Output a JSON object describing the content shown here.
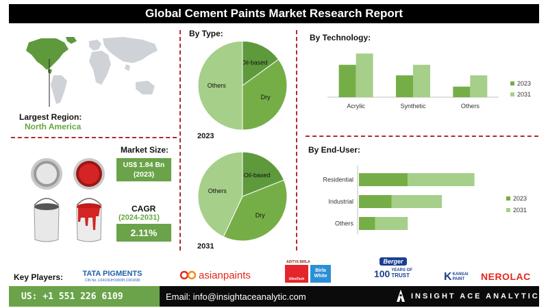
{
  "title": "Global Cement Paints Market Research Report",
  "region": {
    "label": "Largest Region:",
    "value": "North America"
  },
  "market_size": {
    "label": "Market Size:",
    "value": "US$ 1.84  Bn",
    "year": "(2023)"
  },
  "cagr": {
    "label": "CAGR",
    "period": "(2024-2031)",
    "value": "2.11%"
  },
  "sections": {
    "by_type": "By Type:",
    "by_technology": "By  Technology:",
    "by_end_user": "By End-User:"
  },
  "colors": {
    "dark_green": "#5e9a3c",
    "mid_green": "#75ae47",
    "light_green": "#a6cf8a",
    "accent_red": "#b02a2a"
  },
  "key_players": {
    "label": "Key Players:",
    "tata": {
      "name": "TATA PIGMENTS",
      "sub": "CIN No. U24100JH1983PLC001838"
    },
    "asian": "asianpaints",
    "birla": {
      "top": "ADITYA BIRLA",
      "left": "UltraTech",
      "right": "Birla White"
    },
    "berger": {
      "brand": "Berger",
      "years": "100",
      "years_label": "YEARS OF",
      "trust": "TRUST"
    },
    "kansai": {
      "mark": "K",
      "name": "KANSAI",
      "sub": "PAINT"
    },
    "nerolac": "NEROLAC"
  },
  "footer": {
    "phone": "US: +1 551 226 6109",
    "email": "Email: info@insightaceanalytic.com",
    "brand": "INSIGHT ACE ANALYTIC"
  },
  "chart_data": [
    {
      "type": "pie",
      "year": "2023",
      "slices": [
        {
          "label": "Oil-based",
          "value": 15
        },
        {
          "label": "Dry",
          "value": 35
        },
        {
          "label": "Others",
          "value": 50
        }
      ]
    },
    {
      "type": "pie",
      "year": "2031",
      "slices": [
        {
          "label": "Oil-based",
          "value": 19
        },
        {
          "label": "Dry",
          "value": 38
        },
        {
          "label": "Others",
          "value": 43
        }
      ]
    },
    {
      "type": "bar",
      "orientation": "vertical",
      "categories": [
        "Acrylic",
        "Synthetic",
        "Others"
      ],
      "series": [
        {
          "name": "2023",
          "values": [
            46,
            31,
            15
          ]
        },
        {
          "name": "2031",
          "values": [
            62,
            46,
            31
          ]
        }
      ],
      "ylim": [
        0,
        70
      ],
      "grid": false,
      "legend": "right"
    },
    {
      "type": "bar",
      "orientation": "horizontal-stacked",
      "categories": [
        "Residential",
        "Industrial",
        "Others"
      ],
      "series": [
        {
          "name": "2023",
          "values": [
            30,
            20,
            10
          ]
        },
        {
          "name": "2031",
          "values": [
            41,
            31,
            20
          ]
        }
      ],
      "xlim": [
        0,
        80
      ],
      "grid": false,
      "legend": "right"
    }
  ]
}
